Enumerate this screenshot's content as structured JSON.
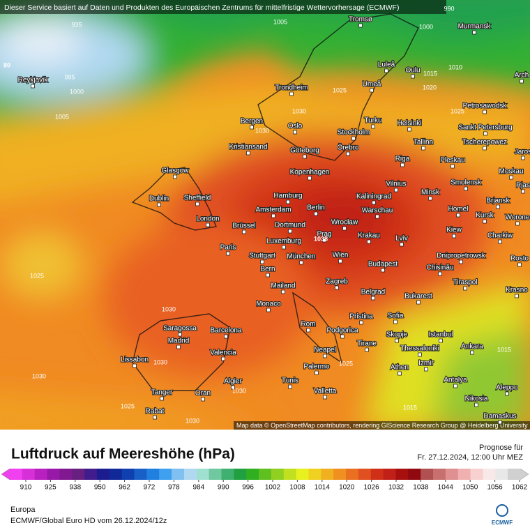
{
  "header": {
    "notice": "Dieser Service basiert auf Daten und Produkten des Europäischen Zentrums für mittelfristige Wettervorhersage (ECMWF)",
    "attribution": "Map data © OpenStreetMap contributors, rendering GIScience Research Group @ Heidelberg University"
  },
  "map": {
    "cities": [
      "Tromsø",
      "Murmansk",
      "Luleå",
      "Oulu",
      "Arch",
      "Reykjavik",
      "Trondheim",
      "Umeå",
      "Petrosawodsk",
      "Bergen",
      "Oslo",
      "Turku",
      "Helsinki",
      "Sankt Petersburg",
      "Stockholm",
      "Kristiansand",
      "Göteborg",
      "Örebro",
      "Tallinn",
      "Tscherepowez",
      "Jaros",
      "Riga",
      "Pleskau",
      "Glasgow",
      "Kopenhagen",
      "Moskau",
      "Vilnius",
      "Smolensk",
      "Minsk",
      "Rjas",
      "Dublin",
      "Sheffield",
      "Hamburg",
      "Kaliningrad",
      "Brjansk",
      "Amsterdam",
      "Berlin",
      "Warschau",
      "Homel",
      "London",
      "Kursk",
      "Worone",
      "Brüssel",
      "Dortmund",
      "Wrocław",
      "Kiew",
      "Prag",
      "Krakau",
      "Charkiw",
      "Luxemburg",
      "Lviv",
      "Paris",
      "Stuttgart",
      "München",
      "Wien",
      "Dnipropetrowsk",
      "Rosto",
      "Chisinău",
      "Budapest",
      "Bern",
      "Tiraspol",
      "Mailand",
      "Zagreb",
      "Belgrad",
      "Krasno",
      "Bukarest",
      "Monaco",
      "Pristina",
      "Sofia",
      "Rom",
      "Podgorica",
      "Saragossa",
      "Barcelona",
      "Istanbul",
      "Skopje",
      "Tirane",
      "Madrid",
      "Thessaloniki",
      "Ankara",
      "Neapel",
      "Valencia",
      "Lissabon",
      "Izmir",
      "Athen",
      "Palermo",
      "Antalya",
      "Algier",
      "Tunis",
      "Valletta",
      "Aleppo",
      "Tanger",
      "Oran",
      "Nikosia",
      "Rabat",
      "Damaskus"
    ],
    "isobar_labels": [
      935,
      1005,
      1000,
      990,
      995,
      1000,
      1005,
      1010,
      1015,
      1020,
      1025,
      1025,
      1030,
      1030,
      1025,
      1030,
      1030,
      1030,
      1025,
      1025,
      1015,
      1015,
      1030,
      1030,
      80,
      1038
    ]
  },
  "legend": {
    "title": "Luftdruck auf Meereshöhe (hPa)",
    "forecast_label": "Prognose für",
    "forecast_time": "Fr. 27.12.2024, 12:00 Uhr MEZ",
    "ticks": [
      910,
      925,
      938,
      950,
      962,
      972,
      978,
      984,
      990,
      996,
      1002,
      1008,
      1014,
      1020,
      1026,
      1032,
      1038,
      1044,
      1050,
      1056,
      1062
    ],
    "colors": [
      "#f040f0",
      "#d830d8",
      "#b820c0",
      "#9818a8",
      "#801890",
      "#682080",
      "#401c8c",
      "#1c1c90",
      "#102898",
      "#1040b0",
      "#1860c8",
      "#2080e0",
      "#40a0f0",
      "#80c0f0",
      "#b0d8f0",
      "#a0e0d0",
      "#70c8a0",
      "#40b070",
      "#20a040",
      "#30b020",
      "#60c020",
      "#90d020",
      "#c0e020",
      "#e8f020",
      "#f0d020",
      "#f0b020",
      "#f09020",
      "#e87020",
      "#e05020",
      "#d03018",
      "#c02018",
      "#a81010",
      "#900810",
      "#b05050",
      "#c87070",
      "#e09090",
      "#f0b0b0",
      "#f8d0d0",
      "#f8e8e8",
      "#e8e8e8",
      "#d0d0d0"
    ],
    "region": "Europa",
    "model": "ECMWF/Global Euro HD vom  26.12.2024/12z",
    "logo": "ECMWF"
  }
}
